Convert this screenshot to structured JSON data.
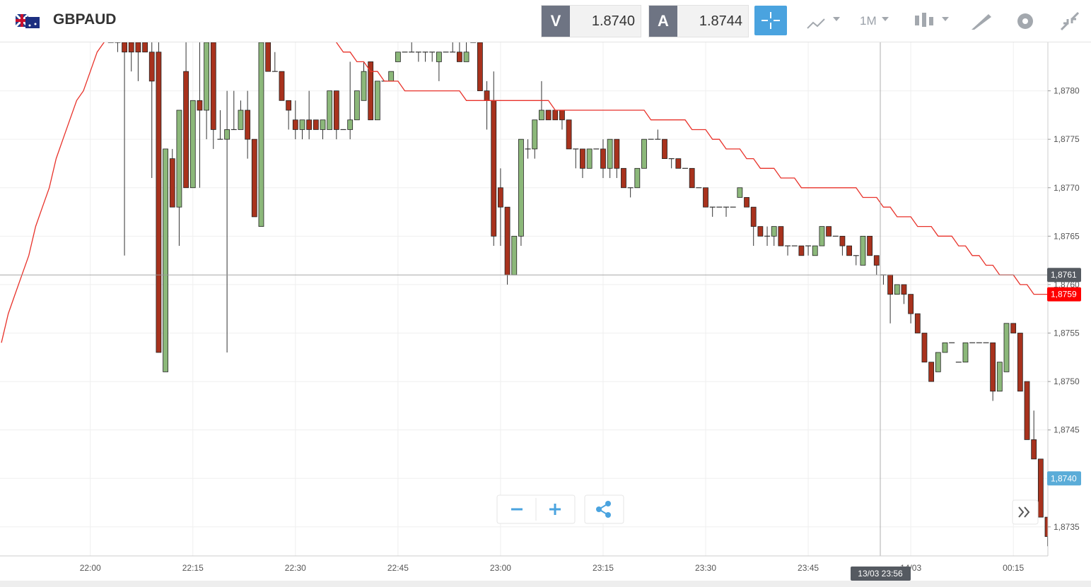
{
  "toolbar": {
    "symbol": "GBPAUD",
    "bid_label": "V",
    "bid": "1.8740",
    "ask_label": "A",
    "ask": "1.8744",
    "timeframe": "1M"
  },
  "chart_data": {
    "type": "candlestick",
    "categories": [
      null,
      null,
      null,
      null,
      null,
      null,
      null,
      null,
      null,
      null,
      null,
      null,
      null,
      "22:00",
      null,
      null,
      null,
      null,
      null,
      null,
      null,
      null,
      null,
      null,
      null,
      null,
      null,
      null,
      "22:15",
      null,
      null,
      null,
      null,
      null,
      null,
      null,
      null,
      null,
      null,
      null,
      null,
      null,
      null,
      "22:30",
      null,
      null,
      null,
      null,
      null,
      null,
      null,
      null,
      null,
      null,
      null,
      null,
      null,
      null,
      "22:45",
      null,
      null,
      null,
      null,
      null,
      null,
      null,
      null,
      null,
      null,
      null,
      null,
      null,
      null,
      "23:00",
      null,
      null,
      null,
      null,
      null,
      null,
      null,
      null,
      null,
      null,
      null,
      null,
      null,
      null,
      "23:15",
      null,
      null,
      null,
      null,
      null,
      null,
      null,
      null,
      null,
      null,
      null,
      null,
      null,
      null,
      "23:30",
      null,
      null,
      null,
      null,
      null,
      null,
      null,
      null,
      null,
      null,
      null,
      null,
      null,
      null,
      "23:45",
      null,
      null,
      null,
      null,
      null,
      null,
      null,
      null,
      null,
      null,
      null,
      null,
      null,
      null,
      "14/03",
      null,
      null,
      null,
      null,
      null,
      null,
      null,
      null,
      null,
      null,
      null,
      null,
      null,
      null,
      "00:15",
      null,
      null,
      null,
      null,
      null
    ],
    "up_color": "#8cb87a",
    "down_color": "#a8321d",
    "ohlc": [
      null,
      null,
      null,
      null,
      null,
      null,
      null,
      null,
      null,
      null,
      null,
      null,
      null,
      null,
      null,
      null,
      [
        1.8785,
        1.8785,
        1.8785,
        1.8785
      ],
      [
        1.8785,
        1.8785,
        1.8784,
        1.8785
      ],
      [
        1.8785,
        1.8785,
        1.8763,
        1.8784
      ],
      [
        1.8785,
        1.8785,
        1.8782,
        1.8784
      ],
      [
        1.8785,
        1.8785,
        1.8781,
        1.8784
      ],
      [
        1.8785,
        1.8785,
        1.8784,
        1.8784
      ],
      [
        1.8784,
        1.8785,
        1.8771,
        1.8781
      ],
      [
        1.8784,
        1.8785,
        1.8753,
        1.8753
      ],
      [
        1.8751,
        1.8774,
        1.8751,
        1.8774
      ],
      [
        1.8773,
        1.8774,
        1.8768,
        1.8768
      ],
      [
        1.8768,
        1.8778,
        1.8764,
        1.8778
      ],
      [
        1.8782,
        1.8785,
        1.877,
        1.877
      ],
      [
        1.877,
        1.8779,
        1.877,
        1.8779
      ],
      [
        1.8779,
        1.8785,
        1.877,
        1.8778
      ],
      [
        1.8778,
        1.8785,
        1.8775,
        1.8785
      ],
      [
        1.8785,
        1.8785,
        1.8774,
        1.8776
      ],
      [
        1.8775,
        1.8778,
        1.8775,
        1.8775
      ],
      [
        1.8775,
        1.878,
        1.8753,
        1.8776
      ],
      [
        1.8776,
        1.878,
        1.8776,
        1.8776
      ],
      [
        1.8776,
        1.8779,
        1.8776,
        1.8778
      ],
      [
        1.8778,
        1.878,
        1.8773,
        1.8775
      ],
      [
        1.8775,
        1.8775,
        1.8767,
        1.8767
      ],
      [
        1.8766,
        1.8785,
        1.8766,
        1.8785
      ],
      [
        1.8785,
        1.8785,
        1.8782,
        1.8782
      ],
      [
        1.8782,
        1.8784,
        1.8782,
        1.8782
      ],
      [
        1.8782,
        1.8782,
        1.8779,
        1.8779
      ],
      [
        1.8779,
        1.8779,
        1.8776,
        1.8778
      ],
      [
        1.8777,
        1.8779,
        1.8775,
        1.8776
      ],
      [
        1.8776,
        1.8777,
        1.8775,
        1.8777
      ],
      [
        1.8777,
        1.878,
        1.8775,
        1.8776
      ],
      [
        1.8777,
        1.8777,
        1.8776,
        1.8776
      ],
      [
        1.8776,
        1.8777,
        1.8775,
        1.8777
      ],
      [
        1.8776,
        1.878,
        1.8776,
        1.878
      ],
      [
        1.878,
        1.878,
        1.8775,
        1.8776
      ],
      [
        1.8776,
        1.8776,
        1.8776,
        1.8776
      ],
      [
        1.8776,
        1.8783,
        1.8775,
        1.8777
      ],
      [
        1.8777,
        1.878,
        1.8777,
        1.878
      ],
      [
        1.8779,
        1.8783,
        1.8779,
        1.8782
      ],
      [
        1.8783,
        1.8783,
        1.8777,
        1.8777
      ],
      [
        1.8777,
        1.8781,
        1.8777,
        1.8781
      ],
      [
        1.8781,
        1.8781,
        1.8781,
        1.8781
      ],
      [
        1.8781,
        1.8782,
        1.8781,
        1.8782
      ],
      [
        1.8783,
        1.8784,
        1.8783,
        1.8784
      ],
      [
        1.8784,
        1.8784,
        1.8784,
        1.8784
      ],
      [
        1.8784,
        1.8785,
        1.8784,
        1.8784
      ],
      [
        1.8784,
        1.8784,
        1.8783,
        1.8784
      ],
      [
        1.8784,
        1.8784,
        1.8783,
        1.8784
      ],
      [
        1.8784,
        1.8784,
        1.8783,
        1.8784
      ],
      [
        1.8783,
        1.8784,
        1.8781,
        1.8784
      ],
      [
        1.8784,
        1.8784,
        1.8784,
        1.8784
      ],
      [
        1.8784,
        1.8785,
        1.8784,
        1.8784
      ],
      [
        1.8784,
        1.8785,
        1.8783,
        1.8783
      ],
      [
        1.8783,
        1.8785,
        1.8783,
        1.8784
      ],
      [
        1.8785,
        1.8785,
        1.8785,
        1.8785
      ],
      [
        1.8785,
        1.8785,
        1.878,
        1.878
      ],
      [
        1.878,
        1.8781,
        1.8776,
        1.8779
      ],
      [
        1.8779,
        1.8782,
        1.8764,
        1.8765
      ],
      [
        1.877,
        1.8772,
        1.8764,
        1.8768
      ],
      [
        1.8768,
        1.8768,
        1.876,
        1.8761
      ],
      [
        1.8761,
        1.8765,
        1.8761,
        1.8765
      ],
      [
        1.8765,
        1.8775,
        1.8764,
        1.8775
      ],
      [
        1.8774,
        1.8775,
        1.8773,
        1.8774
      ],
      [
        1.8774,
        1.8777,
        1.8773,
        1.8777
      ],
      [
        1.8777,
        1.8781,
        1.8777,
        1.8778
      ],
      [
        1.8778,
        1.8778,
        1.8777,
        1.8777
      ],
      [
        1.8778,
        1.8778,
        1.8777,
        1.8777
      ],
      [
        1.8778,
        1.8778,
        1.8776,
        1.8777
      ],
      [
        1.8777,
        1.8777,
        1.8774,
        1.8774
      ],
      [
        1.8774,
        1.8774,
        1.8772,
        1.8774
      ],
      [
        1.8774,
        1.8774,
        1.8771,
        1.8772
      ],
      [
        1.8772,
        1.8774,
        1.8772,
        1.8774
      ],
      [
        1.8774,
        1.8774,
        1.8774,
        1.8774
      ],
      [
        1.8774,
        1.8775,
        1.8771,
        1.8772
      ],
      [
        1.8772,
        1.8775,
        1.8771,
        1.8775
      ],
      [
        1.8775,
        1.8775,
        1.8771,
        1.8772
      ],
      [
        1.8772,
        1.8772,
        1.877,
        1.877
      ],
      [
        1.877,
        1.877,
        1.8769,
        1.877
      ],
      [
        1.877,
        1.8772,
        1.877,
        1.8772
      ],
      [
        1.8772,
        1.8775,
        1.8772,
        1.8775
      ],
      [
        1.8775,
        1.8775,
        1.8775,
        1.8775
      ],
      [
        1.8775,
        1.8776,
        1.8775,
        1.8775
      ],
      [
        1.8775,
        1.8775,
        1.8773,
        1.8773
      ],
      [
        1.8773,
        1.8773,
        1.8772,
        1.8773
      ],
      [
        1.8773,
        1.8773,
        1.8772,
        1.8772
      ],
      [
        1.8772,
        1.8772,
        1.8772,
        1.8772
      ],
      [
        1.8772,
        1.8772,
        1.877,
        1.877
      ],
      [
        1.877,
        1.877,
        1.877,
        1.877
      ],
      [
        1.877,
        1.877,
        1.8768,
        1.8768
      ],
      [
        1.8768,
        1.8768,
        1.8767,
        1.8768
      ],
      [
        1.8768,
        1.8768,
        1.8768,
        1.8768
      ],
      [
        1.8768,
        1.8768,
        1.8767,
        1.8768
      ],
      [
        1.8768,
        1.8768,
        1.8768,
        1.8768
      ],
      [
        1.8769,
        1.877,
        1.8769,
        1.877
      ],
      [
        1.8769,
        1.8769,
        1.8768,
        1.8768
      ],
      [
        1.8768,
        1.8768,
        1.8764,
        1.8766
      ],
      [
        1.8766,
        1.8766,
        1.8765,
        1.8765
      ],
      [
        1.8765,
        1.8766,
        1.8764,
        1.8765
      ],
      [
        1.8765,
        1.8766,
        1.8764,
        1.8766
      ],
      [
        1.8766,
        1.8766,
        1.8764,
        1.8764
      ],
      [
        1.8764,
        1.8764,
        1.8763,
        1.8764
      ],
      [
        1.8764,
        1.8764,
        1.8764,
        1.8764
      ],
      [
        1.8764,
        1.8764,
        1.8763,
        1.8763
      ],
      [
        1.8764,
        1.8764,
        1.8763,
        1.8764
      ],
      [
        1.8763,
        1.8764,
        1.8763,
        1.8764
      ],
      [
        1.8764,
        1.8766,
        1.8764,
        1.8766
      ],
      [
        1.8766,
        1.8766,
        1.8765,
        1.8765
      ],
      [
        1.8765,
        1.8765,
        1.8765,
        1.8765
      ],
      [
        1.8765,
        1.8765,
        1.8763,
        1.8764
      ],
      [
        1.8764,
        1.8764,
        1.8763,
        1.8763
      ],
      [
        1.8763,
        1.8763,
        1.8762,
        1.8763
      ],
      [
        1.8762,
        1.8765,
        1.8762,
        1.8765
      ],
      [
        1.8765,
        1.8765,
        1.8763,
        1.8763
      ],
      [
        1.8763,
        1.8763,
        1.8761,
        1.8762
      ],
      [
        1.8761,
        1.8761,
        1.876,
        1.8761
      ],
      [
        1.8761,
        1.8761,
        1.8756,
        1.8759
      ],
      [
        1.8759,
        1.876,
        1.8759,
        1.876
      ],
      [
        1.876,
        1.876,
        1.8758,
        1.8759
      ],
      [
        1.8759,
        1.8759,
        1.8756,
        1.8757
      ],
      [
        1.8757,
        1.8757,
        1.8755,
        1.8755
      ],
      [
        1.8755,
        1.8755,
        1.8752,
        1.8752
      ],
      [
        1.8752,
        1.8752,
        1.875,
        1.875
      ],
      [
        1.8751,
        1.8753,
        1.8751,
        1.8753
      ],
      [
        1.8753,
        1.8754,
        1.8753,
        1.8754
      ],
      [
        1.8754,
        1.8754,
        1.8754,
        1.8754
      ],
      [
        1.8752,
        1.8752,
        1.8752,
        1.8752
      ],
      [
        1.8752,
        1.8754,
        1.8752,
        1.8754
      ],
      [
        1.8754,
        1.8754,
        1.8754,
        1.8754
      ],
      [
        1.8754,
        1.8754,
        1.8754,
        1.8754
      ],
      [
        1.8754,
        1.8754,
        1.8754,
        1.8754
      ],
      [
        1.8754,
        1.8754,
        1.8748,
        1.8749
      ],
      [
        1.8749,
        1.8752,
        1.8749,
        1.8752
      ],
      [
        1.8751,
        1.8756,
        1.8751,
        1.8756
      ],
      [
        1.8756,
        1.8756,
        1.8755,
        1.8755
      ],
      [
        1.8755,
        1.8755,
        1.8749,
        1.8749
      ],
      [
        1.875,
        1.875,
        1.8744,
        1.8744
      ],
      [
        1.8744,
        1.8747,
        1.8742,
        1.8742
      ],
      [
        1.8742,
        1.8742,
        1.8736,
        1.8736
      ],
      [
        1.8736,
        1.8736,
        1.8733,
        1.8734
      ]
    ],
    "ma": {
      "color": "#e8322a",
      "values": [
        1.8754,
        1.8757,
        1.8759,
        1.8761,
        1.8763,
        1.8766,
        1.8768,
        1.877,
        1.8773,
        1.8775,
        1.8777,
        1.8779,
        1.878,
        1.8782,
        1.8784,
        1.8785,
        1.8786,
        1.8787,
        1.8788,
        1.8788,
        1.8789,
        1.8789,
        1.8789,
        1.8789,
        1.8789,
        1.879,
        1.879,
        1.879,
        1.879,
        1.879,
        1.879,
        1.879,
        1.879,
        1.879,
        1.8789,
        1.8789,
        1.8789,
        1.8789,
        1.8789,
        1.8788,
        1.8788,
        1.8788,
        1.8788,
        1.8787,
        1.8787,
        1.8787,
        1.8786,
        1.8786,
        1.8786,
        1.8785,
        1.8784,
        1.8784,
        1.8783,
        1.8783,
        1.8782,
        1.8782,
        1.8781,
        1.8781,
        1.8781,
        1.878,
        1.878,
        1.878,
        1.878,
        1.878,
        1.878,
        1.878,
        1.878,
        1.878,
        1.8779,
        1.8779,
        1.8779,
        1.8779,
        1.8779,
        1.8779,
        1.8779,
        1.8779,
        1.8779,
        1.8779,
        1.8779,
        1.8779,
        1.8779,
        1.8778,
        1.8778,
        1.8778,
        1.8778,
        1.8778,
        1.8778,
        1.8778,
        1.8778,
        1.8778,
        1.8778,
        1.8778,
        1.8778,
        1.8778,
        1.8778,
        1.8777,
        1.8777,
        1.8777,
        1.8777,
        1.8777,
        1.8777,
        1.8776,
        1.8776,
        1.8776,
        1.8775,
        1.8775,
        1.8774,
        1.8774,
        1.8774,
        1.8773,
        1.8773,
        1.8772,
        1.8772,
        1.8772,
        1.8771,
        1.8771,
        1.8771,
        1.877,
        1.877,
        1.877,
        1.877,
        1.877,
        1.877,
        1.877,
        1.877,
        1.877,
        1.8769,
        1.8769,
        1.8769,
        1.8768,
        1.8768,
        1.8767,
        1.8767,
        1.8767,
        1.8766,
        1.8766,
        1.8766,
        1.8765,
        1.8765,
        1.8765,
        1.8764,
        1.8764,
        1.8763,
        1.8763,
        1.8762,
        1.8762,
        1.8761,
        1.8761,
        1.8761,
        1.876,
        1.876,
        1.8759,
        1.8759,
        1.8759
      ]
    },
    "ylim": [
      1.8732,
      1.8785
    ],
    "yticks": [
      {
        "value": 1.8735,
        "label": "1,8735"
      },
      {
        "value": 1.874,
        "label": "1,8740"
      },
      {
        "value": 1.8745,
        "label": "1,8745"
      },
      {
        "value": 1.875,
        "label": "1,8750"
      },
      {
        "value": 1.8755,
        "label": "1,8755"
      },
      {
        "value": 1.876,
        "label": "1,8760"
      },
      {
        "value": 1.8765,
        "label": "1,8765"
      },
      {
        "value": 1.877,
        "label": "1,8770"
      },
      {
        "value": 1.8775,
        "label": "1,8775"
      },
      {
        "value": 1.878,
        "label": "1,8780"
      }
    ],
    "grid": true,
    "crosshair": {
      "price": {
        "value": 1.8761,
        "label": "1,8761"
      },
      "time": "13/03 23:56"
    },
    "price_tags": [
      {
        "value": 1.8759,
        "label": "1,8759",
        "color": "#ff0000"
      },
      {
        "value": 1.874,
        "label": "1,8740",
        "color": "#5aacd8"
      }
    ]
  }
}
